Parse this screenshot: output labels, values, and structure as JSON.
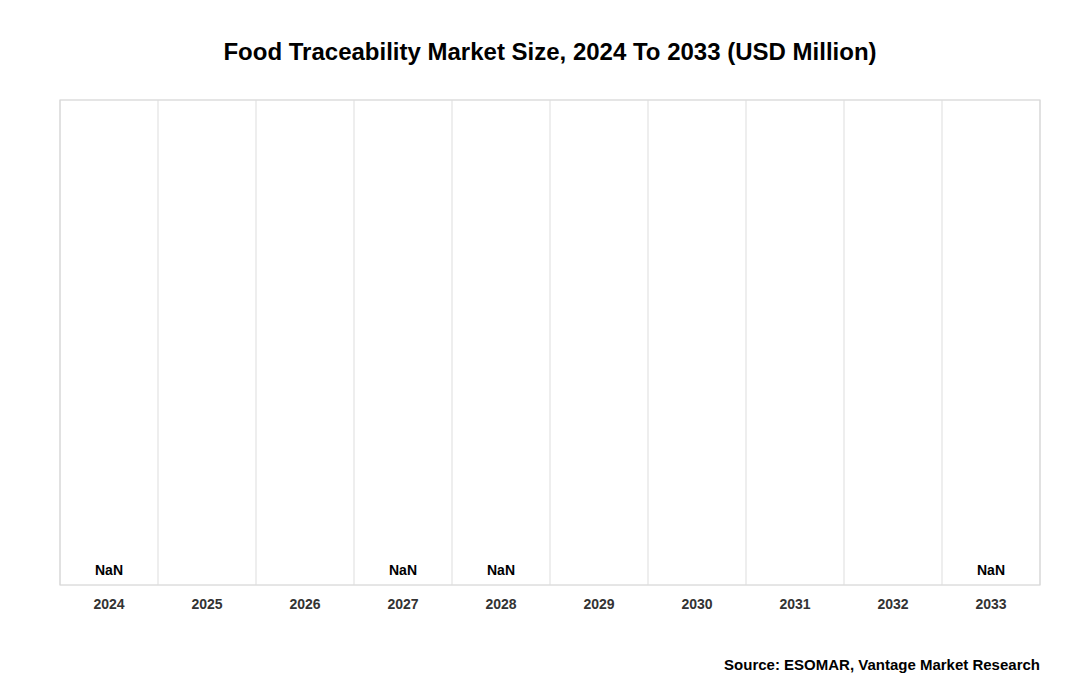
{
  "chart_data": {
    "type": "bar",
    "title": "Food Traceability Market Size, 2024 To 2033 (USD Million)",
    "categories": [
      "2024",
      "2025",
      "2026",
      "2027",
      "2028",
      "2029",
      "2030",
      "2031",
      "2032",
      "2033"
    ],
    "values": [
      null,
      null,
      null,
      null,
      null,
      null,
      null,
      null,
      null,
      null
    ],
    "value_labels": [
      "NaN",
      null,
      null,
      "NaN",
      "NaN",
      null,
      null,
      null,
      null,
      "NaN"
    ],
    "data_labels": true,
    "color": "#4472c4",
    "ylim": [
      0,
      1
    ],
    "yticks": [],
    "tick_labels": "x",
    "grid": true,
    "annotations": [
      "Source: ESOMAR, Vantage Market Research"
    ]
  }
}
